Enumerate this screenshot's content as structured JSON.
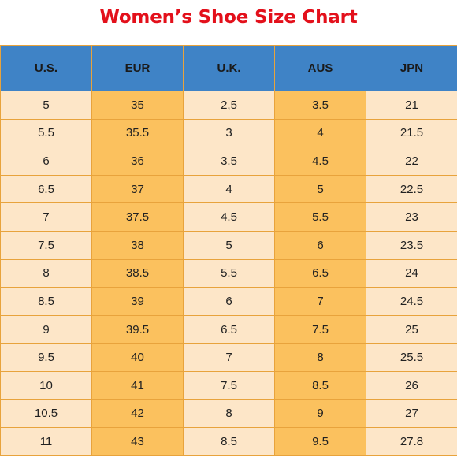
{
  "title": "Women’s Shoe Size Chart",
  "colors": {
    "title": "#e3101b",
    "header_bg": "#3f83c6",
    "cell_bg": "#fde6c8",
    "highlight_bg": "#fbc15e",
    "border": "#e8a33c"
  },
  "table": {
    "headers": [
      "U.S.",
      "EUR",
      "U.K.",
      "AUS",
      "JPN"
    ],
    "highlighted_columns": [
      1,
      3
    ],
    "rows": [
      [
        "5",
        "35",
        "2,5",
        "3.5",
        "21"
      ],
      [
        "5.5",
        "35.5",
        "3",
        "4",
        "21.5"
      ],
      [
        "6",
        "36",
        "3.5",
        "4.5",
        "22"
      ],
      [
        "6.5",
        "37",
        "4",
        "5",
        "22.5"
      ],
      [
        "7",
        "37.5",
        "4.5",
        "5.5",
        "23"
      ],
      [
        "7.5",
        "38",
        "5",
        "6",
        "23.5"
      ],
      [
        "8",
        "38.5",
        "5.5",
        "6.5",
        "24"
      ],
      [
        "8.5",
        "39",
        "6",
        "7",
        "24.5"
      ],
      [
        "9",
        "39.5",
        "6.5",
        "7.5",
        "25"
      ],
      [
        "9.5",
        "40",
        "7",
        "8",
        "25.5"
      ],
      [
        "10",
        "41",
        "7.5",
        "8.5",
        "26"
      ],
      [
        "10.5",
        "42",
        "8",
        "9",
        "27"
      ],
      [
        "11",
        "43",
        "8.5",
        "9.5",
        "27.8"
      ]
    ]
  }
}
